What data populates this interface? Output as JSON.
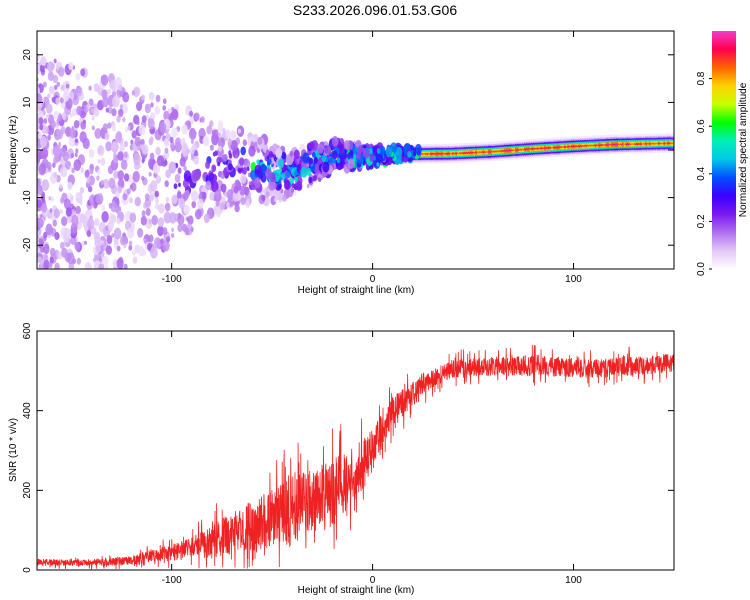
{
  "title": "S233.2026.096.01.53.G06",
  "colors": {
    "snr_line": "#ee2222",
    "axis": "#000000",
    "background": "#ffffff"
  },
  "chart_data": [
    {
      "type": "heatmap",
      "name": "spectrogram",
      "xlabel": "Height of straight line (km)",
      "ylabel": "Frequency (Hz)",
      "xlim": [
        -167,
        150
      ],
      "ylim": [
        -25,
        25
      ],
      "x_ticks": [
        -100,
        0,
        100
      ],
      "x_tick_labels": [
        "-100",
        "0",
        "100"
      ],
      "y_ticks": [
        -20,
        -10,
        0,
        10,
        20
      ],
      "y_tick_labels": [
        "-20",
        "-10",
        "0",
        "10",
        "20"
      ],
      "ridge": {
        "x": [
          -167,
          -120,
          -100,
          -80,
          -60,
          -40,
          -30,
          -20,
          -10,
          0,
          10,
          20,
          40,
          60,
          80,
          100,
          120,
          150
        ],
        "frequency": [
          -5,
          -6,
          -5,
          -4,
          -4,
          -5,
          -3,
          -1,
          -1.5,
          -1.5,
          -1,
          -0.8,
          -0.7,
          -0.3,
          0.3,
          0.8,
          1.2,
          1.5
        ]
      },
      "colorbar": {
        "label": "Normalized spectral amplitude",
        "range": [
          0,
          1
        ],
        "ticks": [
          0,
          0.2,
          0.4,
          0.6,
          0.8
        ],
        "tick_labels": [
          "0.0",
          "0.2",
          "0.4",
          "0.6",
          "0.8"
        ],
        "colormap": [
          "#ffffff",
          "#e2c8f8",
          "#b070ee",
          "#7a18f0",
          "#3a00ff",
          "#0050ff",
          "#00c8e6",
          "#00f0b4",
          "#00ff00",
          "#c8ff00",
          "#ffd200",
          "#ff6400",
          "#ff0050",
          "#f03cc8"
        ]
      }
    },
    {
      "type": "line",
      "name": "snr",
      "xlabel": "Height of straight line (km)",
      "ylabel": "SNR (10 * v/v)",
      "xlim": [
        -167,
        150
      ],
      "ylim": [
        0,
        600
      ],
      "x_ticks": [
        -100,
        0,
        100
      ],
      "x_tick_labels": [
        "-100",
        "0",
        "100"
      ],
      "y_ticks": [
        0,
        200,
        400,
        600
      ],
      "y_tick_labels": [
        "0",
        "200",
        "400",
        "600"
      ],
      "series": [
        {
          "name": "SNR",
          "x": [
            -167,
            -150,
            -130,
            -120,
            -110,
            -100,
            -90,
            -80,
            -70,
            -60,
            -50,
            -40,
            -30,
            -20,
            -10,
            -5,
            0,
            5,
            10,
            20,
            25,
            30,
            40,
            50,
            60,
            70,
            80,
            90,
            100,
            110,
            120,
            130,
            140,
            150
          ],
          "mean": [
            20,
            18,
            20,
            25,
            35,
            45,
            55,
            70,
            90,
            110,
            130,
            150,
            175,
            190,
            240,
            265,
            300,
            350,
            400,
            440,
            470,
            480,
            505,
            510,
            512,
            510,
            515,
            510,
            508,
            505,
            510,
            512,
            515,
            520
          ],
          "jitter": [
            10,
            10,
            12,
            15,
            20,
            25,
            35,
            55,
            70,
            80,
            90,
            110,
            100,
            110,
            90,
            80,
            70,
            55,
            45,
            40,
            35,
            30,
            30,
            30,
            30,
            30,
            35,
            30,
            30,
            30,
            30,
            30,
            30,
            30
          ]
        }
      ]
    }
  ]
}
